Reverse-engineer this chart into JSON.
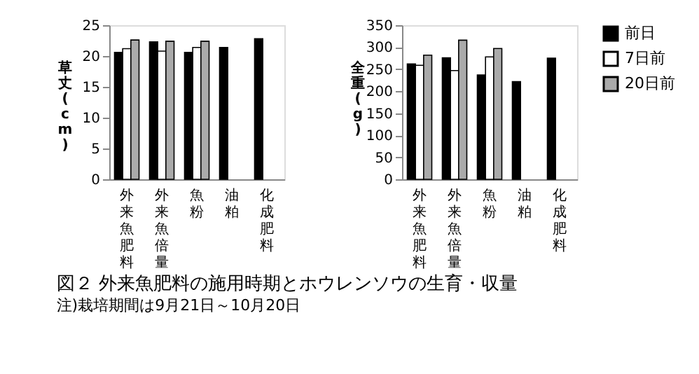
{
  "chart_data": [
    {
      "type": "bar",
      "title": "図２ 外来魚肥料の施用時期とホウレンソウの生育・収量",
      "annotations": [
        "注)栽培期間は9月21日～10月20日"
      ],
      "ylabel": "草丈(cm)",
      "categories": [
        "外来魚肥料",
        "外来魚倍量",
        "魚粉",
        "油粕",
        "化成肥料"
      ],
      "ylim": [
        0,
        25
      ],
      "yticks": [
        0,
        5,
        10,
        15,
        20,
        25
      ],
      "grid": false,
      "legend": false,
      "series": [
        {
          "color": "#000000",
          "values": [
            20.6,
            22.3,
            20.6,
            21.4,
            22.8
          ]
        },
        {
          "color": "#ffffff",
          "values": [
            21.2,
            20.8,
            21.4,
            null,
            null
          ]
        },
        {
          "color": "#aaaaaa",
          "values": [
            22.6,
            22.4,
            22.4,
            null,
            null
          ]
        }
      ]
    },
    {
      "type": "bar",
      "ylabel": "全重(g)",
      "categories": [
        "外来魚肥料",
        "外来魚倍量",
        "魚粉",
        "油粕",
        "化成肥料"
      ],
      "ylim": [
        0,
        350
      ],
      "yticks": [
        0,
        50,
        100,
        150,
        200,
        250,
        300,
        350
      ],
      "grid": false,
      "legend": "right",
      "series": [
        {
          "name": "前日",
          "color": "#000000",
          "values": [
            262,
            276,
            237,
            222,
            275
          ]
        },
        {
          "name": "7日前",
          "color": "#ffffff",
          "values": [
            259,
            247,
            278,
            null,
            null
          ]
        },
        {
          "name": "20日前",
          "color": "#aaaaaa",
          "values": [
            282,
            316,
            297,
            null,
            null
          ]
        }
      ]
    }
  ]
}
